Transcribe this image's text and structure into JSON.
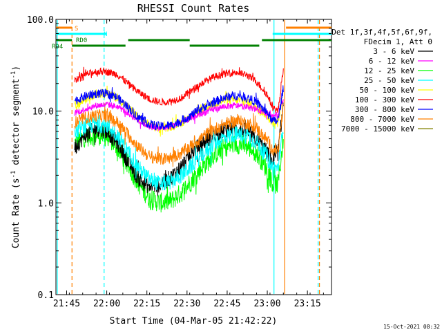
{
  "chart_data": {
    "type": "line",
    "title": "RHESSI Count Rates",
    "xlabel": "Start Time (04-Mar-05 21:42:22)",
    "ylabel": "Count Rate (s⁻¹ detector segment⁻¹)",
    "ylog": true,
    "xlim": [
      "21:41",
      "23:24"
    ],
    "ylim": [
      0.1,
      100.0
    ],
    "xticks": [
      {
        "t": "21:45",
        "label": "21:45"
      },
      {
        "t": "22:00",
        "label": "22:00"
      },
      {
        "t": "22:15",
        "label": "22:15"
      },
      {
        "t": "22:30",
        "label": "22:30"
      },
      {
        "t": "22:45",
        "label": "22:45"
      },
      {
        "t": "23:00",
        "label": "23:00"
      },
      {
        "t": "23:15",
        "label": "23:15"
      }
    ],
    "yticks": [
      {
        "v": 0.1,
        "label": "0.1"
      },
      {
        "v": 1.0,
        "label": "1.0"
      },
      {
        "v": 10.0,
        "label": "10.0"
      },
      {
        "v": 100.0,
        "label": "100.0"
      }
    ],
    "legend_header": [
      "Det 1f,3f,4f,5f,6f,9f,",
      "FDecim 1, Att 0"
    ],
    "legend_position": "right",
    "series": [
      {
        "name": "3 - 6 keV",
        "color": "#000000",
        "x": [
          "21:48",
          "21:52",
          "21:56",
          "22:00",
          "22:04",
          "22:08",
          "22:12",
          "22:16",
          "22:20",
          "22:24",
          "22:28",
          "22:32",
          "22:36",
          "22:40",
          "22:44",
          "22:48",
          "22:52",
          "22:56",
          "23:00",
          "23:02",
          "23:04",
          "23:06"
        ],
        "y": [
          4.0,
          5.5,
          6.5,
          6.0,
          4.5,
          2.8,
          1.8,
          1.5,
          1.6,
          1.9,
          2.5,
          3.6,
          4.5,
          5.5,
          6.2,
          6.5,
          6.0,
          5.0,
          3.5,
          2.8,
          3.5,
          12
        ]
      },
      {
        "name": "6 - 12 keV",
        "color": "#ff00ff",
        "x": [
          "21:48",
          "21:52",
          "21:56",
          "22:00",
          "22:04",
          "22:08",
          "22:12",
          "22:16",
          "22:20",
          "22:24",
          "22:28",
          "22:32",
          "22:36",
          "22:40",
          "22:44",
          "22:48",
          "22:52",
          "22:56",
          "23:00",
          "23:02",
          "23:04",
          "23:06"
        ],
        "y": [
          9.5,
          10.5,
          11.5,
          11.8,
          11.2,
          9.5,
          7.8,
          6.8,
          6.5,
          6.8,
          7.5,
          8.5,
          9.5,
          10.5,
          11.2,
          11.5,
          11.2,
          10.5,
          9.5,
          8.8,
          9.0,
          14
        ]
      },
      {
        "name": "12 - 25 keV",
        "color": "#00ff00",
        "x": [
          "21:48",
          "21:52",
          "21:56",
          "22:00",
          "22:04",
          "22:08",
          "22:12",
          "22:16",
          "22:20",
          "22:24",
          "22:28",
          "22:32",
          "22:36",
          "22:40",
          "22:44",
          "22:48",
          "22:52",
          "22:56",
          "23:00",
          "23:02",
          "23:04",
          "23:06"
        ],
        "y": [
          4.5,
          5.2,
          5.5,
          5.2,
          4.0,
          2.5,
          1.6,
          1.1,
          1.0,
          1.05,
          1.3,
          1.8,
          2.5,
          3.3,
          4.0,
          4.4,
          4.2,
          3.5,
          2.3,
          1.6,
          1.6,
          5.0
        ]
      },
      {
        "name": "25 - 50 keV",
        "color": "#00ffff",
        "x": [
          "21:48",
          "21:52",
          "21:56",
          "22:00",
          "22:04",
          "22:08",
          "22:12",
          "22:16",
          "22:20",
          "22:24",
          "22:28",
          "22:32",
          "22:36",
          "22:40",
          "22:44",
          "22:48",
          "22:52",
          "22:56",
          "23:00",
          "23:02",
          "23:04",
          "23:06"
        ],
        "y": [
          5.8,
          6.8,
          7.2,
          7.0,
          5.5,
          3.6,
          2.4,
          1.8,
          1.6,
          1.7,
          2.0,
          2.6,
          3.4,
          4.4,
          5.2,
          5.6,
          5.4,
          4.6,
          3.2,
          2.4,
          2.4,
          6.5
        ]
      },
      {
        "name": "50 - 100 keV",
        "color": "#ffff00",
        "x": [
          "21:48",
          "21:52",
          "21:56",
          "22:00",
          "22:04",
          "22:08",
          "22:12",
          "22:16",
          "22:20",
          "22:24",
          "22:28",
          "22:32",
          "22:36",
          "22:40",
          "22:44",
          "22:48",
          "22:52",
          "22:56",
          "23:00",
          "23:02",
          "23:04",
          "23:06"
        ],
        "y": [
          11.0,
          13.5,
          15.5,
          15.5,
          14.0,
          11.0,
          8.5,
          7.0,
          6.5,
          6.8,
          7.5,
          9.0,
          10.5,
          12.0,
          13.0,
          13.3,
          12.5,
          11.0,
          9.0,
          7.5,
          7.5,
          16
        ]
      },
      {
        "name": "100 - 300 keV",
        "color": "#ff0000",
        "x": [
          "21:48",
          "21:52",
          "21:56",
          "22:00",
          "22:04",
          "22:08",
          "22:12",
          "22:16",
          "22:20",
          "22:24",
          "22:28",
          "22:32",
          "22:36",
          "22:40",
          "22:44",
          "22:48",
          "22:52",
          "22:56",
          "23:00",
          "23:02",
          "23:04",
          "23:06"
        ],
        "y": [
          22,
          25,
          27,
          27,
          25,
          20,
          16,
          13.5,
          12.5,
          12.8,
          14,
          17,
          20.5,
          23.5,
          25.5,
          26.5,
          25,
          21,
          15,
          11,
          10,
          28
        ]
      },
      {
        "name": "300 - 800 keV",
        "color": "#0000ff",
        "x": [
          "21:48",
          "21:52",
          "21:56",
          "22:00",
          "22:04",
          "22:08",
          "22:12",
          "22:16",
          "22:20",
          "22:24",
          "22:28",
          "22:32",
          "22:36",
          "22:40",
          "22:44",
          "22:48",
          "22:52",
          "22:56",
          "23:00",
          "23:02",
          "23:04",
          "23:06"
        ],
        "y": [
          13,
          14.5,
          15.5,
          15.5,
          14.0,
          11.0,
          8.5,
          7.2,
          6.8,
          7.0,
          7.8,
          9.2,
          11,
          12.5,
          14,
          14.8,
          14.2,
          12.5,
          9.5,
          7.8,
          7.8,
          18
        ]
      },
      {
        "name": "800 - 7000 keV",
        "color": "#ff8000",
        "x": [
          "21:48",
          "21:52",
          "21:56",
          "22:00",
          "22:04",
          "22:08",
          "22:12",
          "22:16",
          "22:20",
          "22:24",
          "22:28",
          "22:32",
          "22:36",
          "22:40",
          "22:44",
          "22:48",
          "22:52",
          "22:56",
          "23:00",
          "23:02",
          "23:04",
          "23:06"
        ],
        "y": [
          7.5,
          8.5,
          9.0,
          8.8,
          7.5,
          5.5,
          4.0,
          3.2,
          3.0,
          3.1,
          3.5,
          4.3,
          5.3,
          6.3,
          7.2,
          7.8,
          7.5,
          6.5,
          4.8,
          3.8,
          3.8,
          11
        ]
      },
      {
        "name": "7000 - 15000 keV",
        "color": "#808000",
        "x": [],
        "y": []
      }
    ],
    "vertical_lines": [
      {
        "t": "21:41:30",
        "color": "#00ffff",
        "dash": false
      },
      {
        "t": "21:47:00",
        "color": "#ff8000",
        "dash": true
      },
      {
        "t": "21:59:00",
        "color": "#00ffff",
        "dash": true
      },
      {
        "t": "23:02:30",
        "color": "#00ffff",
        "dash": false
      },
      {
        "t": "23:06:30",
        "color": "#ff8000",
        "dash": false
      },
      {
        "t": "23:19:00",
        "color": "#00ffff",
        "dash": true
      },
      {
        "t": "23:19:30",
        "color": "#ff8000",
        "dash": true
      }
    ],
    "flag_bars": [
      {
        "label": "S",
        "color": "#ff8000",
        "segments": [
          [
            "21:41",
            "21:47"
          ],
          [
            "23:07",
            "23:24"
          ]
        ]
      },
      {
        "label": "N",
        "color": "#00ffff",
        "segments": [
          [
            "21:41",
            "22:00"
          ],
          [
            "23:02",
            "23:24"
          ]
        ]
      },
      {
        "label": "RD0",
        "color": "#008000",
        "segments": [
          [
            "21:41",
            "21:47"
          ],
          [
            "22:08",
            "22:31"
          ],
          [
            "22:58",
            "23:24"
          ]
        ]
      },
      {
        "label": "RD4",
        "color": "#008000",
        "segments": [
          [
            "21:47",
            "22:07"
          ],
          [
            "22:31",
            "22:57"
          ]
        ]
      }
    ],
    "footer_timestamp": "15-Oct-2021 08:32"
  }
}
